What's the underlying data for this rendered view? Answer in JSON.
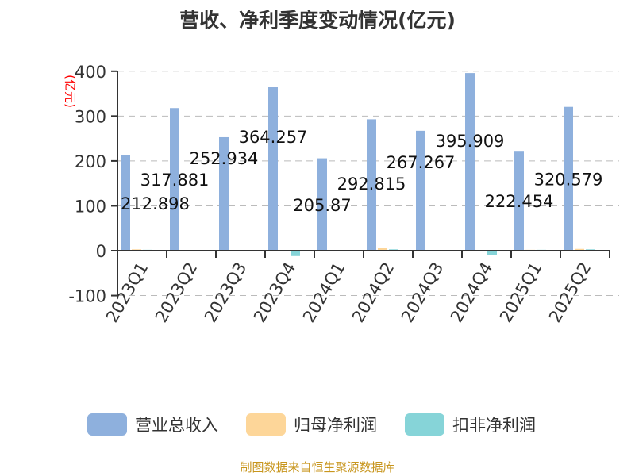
{
  "chart_data": {
    "type": "bar",
    "title": "营收、净利季度变动情况(亿元)",
    "ylabel": "(亿元)",
    "ylim": [
      -100,
      400
    ],
    "yticks": [
      "-100",
      "0",
      "100",
      "200",
      "300",
      "400"
    ],
    "grid": true,
    "legend": "bottom",
    "categories": [
      "2023Q1",
      "2023Q2",
      "2023Q3",
      "2023Q4",
      "2024Q1",
      "2024Q2",
      "2024Q3",
      "2024Q4",
      "2025Q1",
      "2025Q2"
    ],
    "series": [
      {
        "name": "营业总收入",
        "color": "#8eb0dd",
        "values": [
          212.898,
          317.881,
          252.934,
          364.257,
          205.87,
          292.815,
          267.267,
          395.909,
          222.454,
          320.579
        ],
        "labels": [
          "212.898",
          "317.881",
          "252.934",
          "364.257",
          "205.87",
          "292.815",
          "267.267",
          "395.909",
          "222.454",
          "320.579"
        ]
      },
      {
        "name": "归母净利润",
        "color": "#fdd699",
        "values": [
          3,
          1,
          1.5,
          0.3,
          -1,
          6,
          0.5,
          0.3,
          2,
          4
        ]
      },
      {
        "name": "扣非净利润",
        "color": "#86d4d8",
        "values": [
          2,
          0.5,
          -1,
          -12,
          -0.5,
          3,
          0.5,
          -9,
          2,
          3
        ]
      }
    ]
  },
  "footer": "制图数据来自恒生聚源数据库"
}
